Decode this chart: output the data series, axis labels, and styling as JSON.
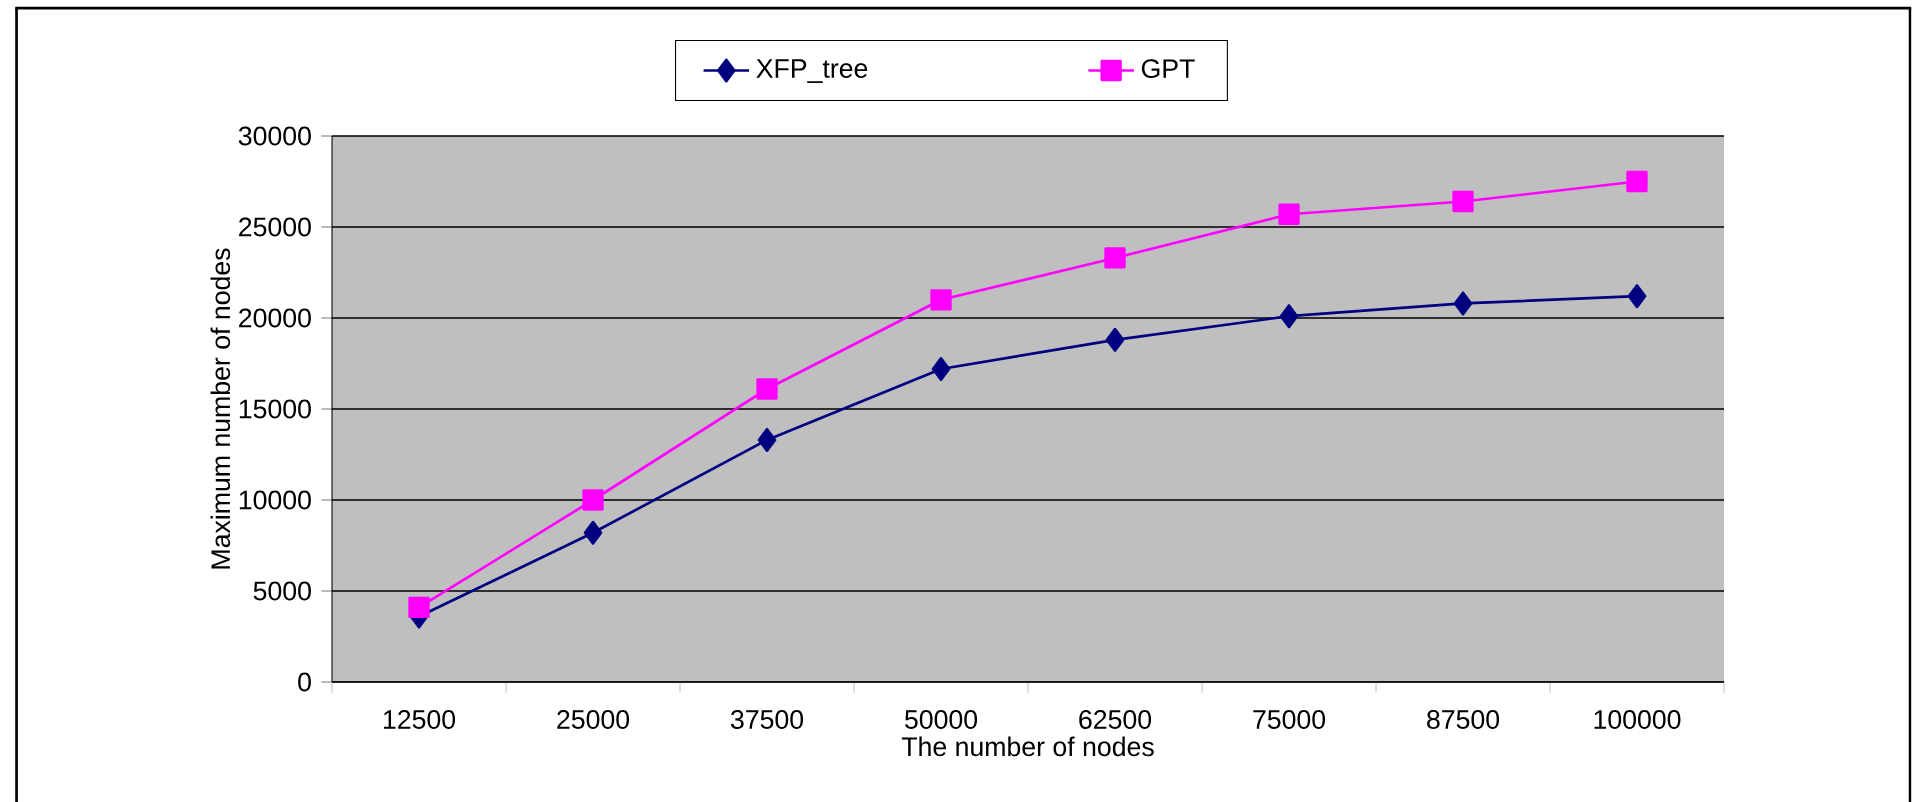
{
  "chart_data": {
    "type": "line",
    "xlabel": "The number of nodes",
    "ylabel": "Maximum number of nodes",
    "categories": [
      "12500",
      "25000",
      "37500",
      "50000",
      "62500",
      "75000",
      "87500",
      "100000"
    ],
    "series": [
      {
        "name": "XFP_tree",
        "color": "#000080",
        "marker": "diamond",
        "values": [
          3600,
          8200,
          13300,
          17200,
          18800,
          20100,
          20800,
          21200
        ]
      },
      {
        "name": "GPT",
        "color": "#ff00ff",
        "marker": "square",
        "values": [
          4100,
          10000,
          16100,
          21000,
          23300,
          25700,
          26400,
          27500
        ]
      }
    ],
    "ylim": [
      0,
      30000
    ],
    "yticks": [
      0,
      5000,
      10000,
      15000,
      20000,
      25000,
      30000
    ],
    "grid": "y",
    "legend": "top"
  }
}
